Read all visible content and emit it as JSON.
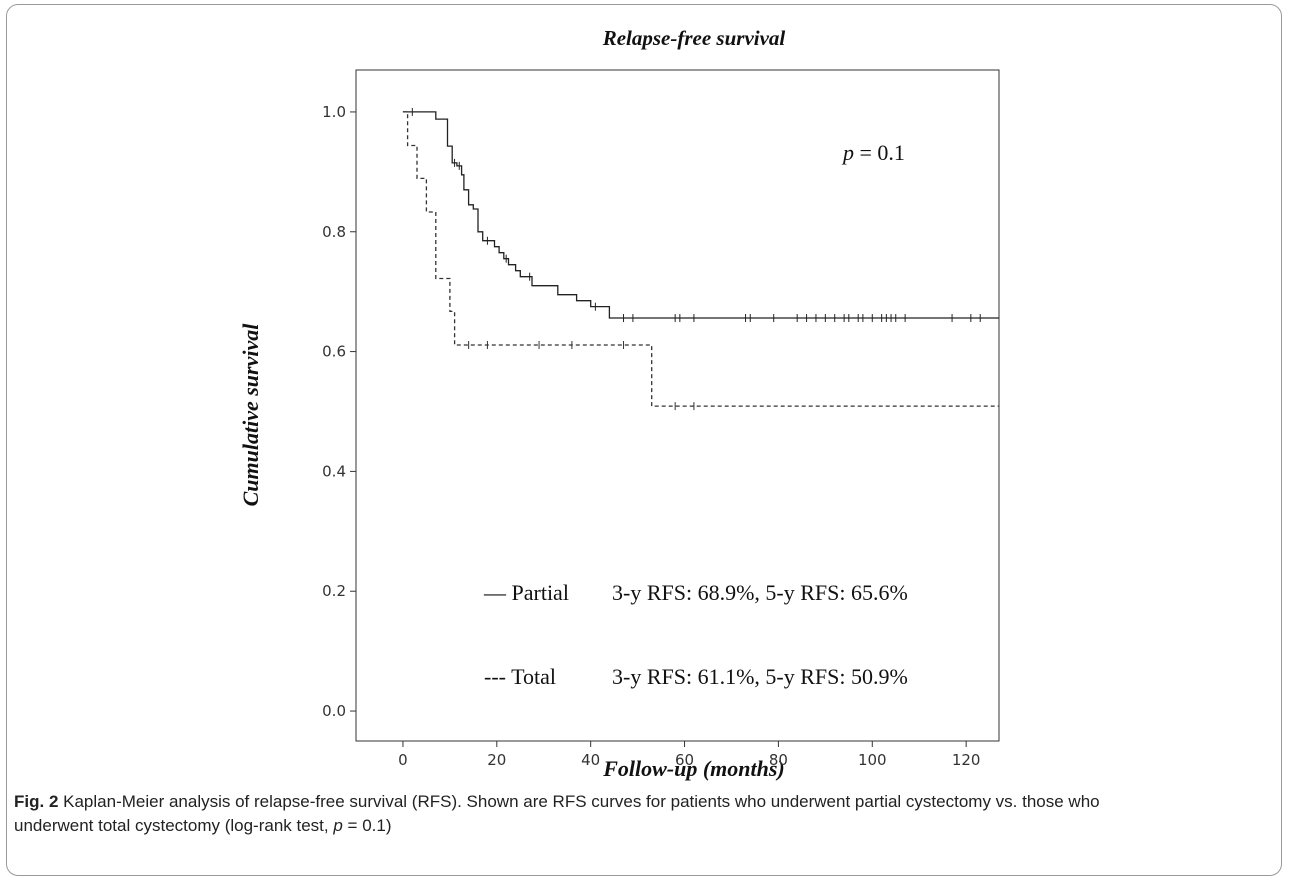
{
  "chart_data": {
    "type": "line",
    "title": "Relapse-free survival",
    "xlabel": "Follow-up (months)",
    "ylabel": "Cumulative survival",
    "xlim": [
      -10,
      127
    ],
    "ylim": [
      -0.05,
      1.07
    ],
    "x_ticks": [
      0,
      20,
      40,
      60,
      80,
      100,
      120
    ],
    "y_ticks": [
      0.0,
      0.2,
      0.4,
      0.6,
      0.8,
      1.0
    ],
    "x_tick_labels": [
      "0",
      "20",
      "40",
      "60",
      "80",
      "100",
      "120"
    ],
    "y_tick_labels": [
      "0.0",
      "0.2",
      "0.4",
      "0.6",
      "0.8",
      "1.0"
    ],
    "grid": false,
    "annotation": "p = 0.1",
    "series": [
      {
        "name": "Partial",
        "line_style": "solid",
        "color": "#222222",
        "legend_text": "— Partial",
        "summary": "3-y RFS: 68.9%, 5-y RFS: 65.6%",
        "steps": [
          [
            0,
            1.0
          ],
          [
            7,
            0.988
          ],
          [
            9.5,
            0.943
          ],
          [
            10.5,
            0.915
          ],
          [
            11.5,
            0.91
          ],
          [
            12.5,
            0.895
          ],
          [
            13,
            0.87
          ],
          [
            14,
            0.845
          ],
          [
            15,
            0.838
          ],
          [
            16,
            0.8
          ],
          [
            17,
            0.785
          ],
          [
            19.5,
            0.775
          ],
          [
            20.5,
            0.765
          ],
          [
            21.5,
            0.755
          ],
          [
            22.5,
            0.745
          ],
          [
            24,
            0.735
          ],
          [
            25,
            0.725
          ],
          [
            27.5,
            0.71
          ],
          [
            33,
            0.695
          ],
          [
            37,
            0.685
          ],
          [
            40,
            0.675
          ],
          [
            44,
            0.656
          ]
        ],
        "end_x": 127,
        "censored_x": [
          2,
          11,
          12,
          18,
          22,
          27,
          41,
          47,
          49,
          58,
          59,
          62,
          73,
          74,
          79,
          84,
          86,
          88,
          90,
          92,
          94,
          95,
          97,
          98,
          100,
          102,
          103,
          104,
          105,
          107,
          117,
          121,
          123
        ]
      },
      {
        "name": "Total",
        "line_style": "dashed",
        "color": "#333333",
        "legend_text": "--- Total",
        "summary": "3-y RFS: 61.1%, 5-y RFS: 50.9%",
        "steps": [
          [
            0,
            1.0
          ],
          [
            1,
            0.944
          ],
          [
            3,
            0.889
          ],
          [
            5,
            0.833
          ],
          [
            7,
            0.722
          ],
          [
            10,
            0.667
          ],
          [
            11,
            0.611
          ],
          [
            53,
            0.509
          ]
        ],
        "end_x": 127,
        "censored_x": [
          14,
          18,
          29,
          36,
          47,
          58,
          62
        ]
      }
    ]
  },
  "caption": {
    "label": "Fig. 2",
    "line1": " Kaplan-Meier analysis of relapse-free survival (RFS). Shown are RFS curves for patients who underwent partial cystectomy vs. those who",
    "line2_pre": "underwent total cystectomy (log-rank test, ",
    "line2_p": "p",
    "line2_post": " = 0.1)"
  }
}
